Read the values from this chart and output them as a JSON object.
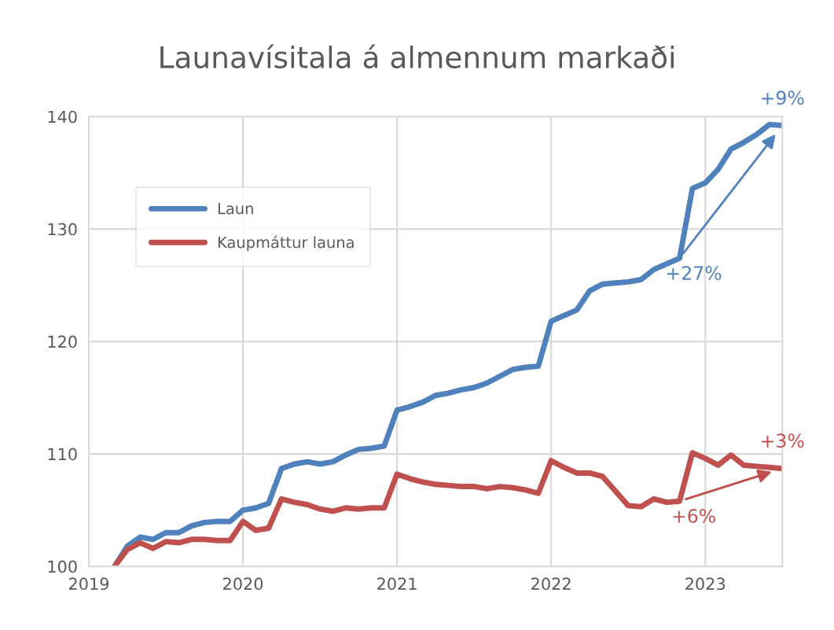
{
  "chart_data": {
    "type": "line",
    "title": "Launavísitala á almennum markaði",
    "x": [
      "2019-03",
      "2019-04",
      "2019-05",
      "2019-06",
      "2019-07",
      "2019-08",
      "2019-09",
      "2019-10",
      "2019-11",
      "2019-12",
      "2020-01",
      "2020-02",
      "2020-03",
      "2020-04",
      "2020-05",
      "2020-06",
      "2020-07",
      "2020-08",
      "2020-09",
      "2020-10",
      "2020-11",
      "2020-12",
      "2021-01",
      "2021-02",
      "2021-03",
      "2021-04",
      "2021-05",
      "2021-06",
      "2021-07",
      "2021-08",
      "2021-09",
      "2021-10",
      "2021-11",
      "2021-12",
      "2022-01",
      "2022-02",
      "2022-03",
      "2022-04",
      "2022-05",
      "2022-06",
      "2022-07",
      "2022-08",
      "2022-09",
      "2022-10",
      "2022-11",
      "2022-12",
      "2023-01",
      "2023-02",
      "2023-03",
      "2023-04",
      "2023-05",
      "2023-06",
      "2023-07"
    ],
    "series": [
      {
        "name": "Laun",
        "color": "#4f81bd",
        "values": [
          100.0,
          101.8,
          102.6,
          102.4,
          103.0,
          103.0,
          103.6,
          103.9,
          104.0,
          104.0,
          105.0,
          105.2,
          105.6,
          108.7,
          109.1,
          109.3,
          109.1,
          109.3,
          109.9,
          110.4,
          110.5,
          110.7,
          113.9,
          114.2,
          114.6,
          115.2,
          115.4,
          115.7,
          115.9,
          116.3,
          116.9,
          117.5,
          117.7,
          117.8,
          121.8,
          122.3,
          122.8,
          124.5,
          125.1,
          125.2,
          125.3,
          125.5,
          126.4,
          126.9,
          127.4,
          133.6,
          134.1,
          135.3,
          137.1,
          137.7,
          138.4,
          139.3,
          139.2
        ]
      },
      {
        "name": "Kaupmáttur launa",
        "color": "#c0504d",
        "values": [
          100.0,
          101.5,
          102.1,
          101.6,
          102.2,
          102.1,
          102.4,
          102.4,
          102.3,
          102.3,
          104.0,
          103.2,
          103.4,
          106.0,
          105.7,
          105.5,
          105.1,
          104.9,
          105.2,
          105.1,
          105.2,
          105.2,
          108.2,
          107.8,
          107.5,
          107.3,
          107.2,
          107.1,
          107.1,
          106.9,
          107.1,
          107.0,
          106.8,
          106.5,
          109.4,
          108.8,
          108.3,
          108.3,
          108.0,
          106.7,
          105.4,
          105.3,
          106.0,
          105.7,
          105.8,
          110.1,
          109.6,
          109.0,
          109.9,
          109.0,
          108.9,
          108.8,
          108.7
        ]
      }
    ],
    "xlim": [
      "2019-01",
      "2023-07"
    ],
    "xticks": [
      "2019",
      "2020",
      "2021",
      "2022",
      "2023"
    ],
    "ylim": [
      100,
      140
    ],
    "yticks": [
      100,
      110,
      120,
      130,
      140
    ],
    "grid": true,
    "legend": "top left",
    "line_style": "solid",
    "marker": "none",
    "annotations": [
      {
        "text": "+9%",
        "x": "2023-07",
        "y": 139.2
      },
      {
        "text": "+27%",
        "x": "2022-11",
        "y": 127.4
      },
      {
        "text": "+3%",
        "x": "2023-07",
        "y": 108.7
      },
      {
        "text": "+6%",
        "x": "2022-11",
        "y": 105.8
      }
    ]
  }
}
